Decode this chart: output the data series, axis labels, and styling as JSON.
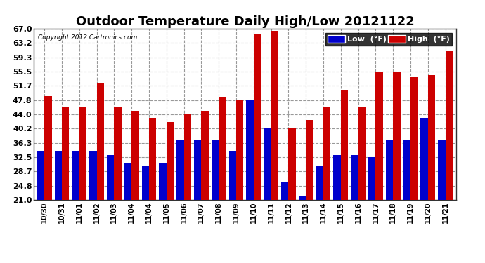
{
  "title": "Outdoor Temperature Daily High/Low 20121122",
  "copyright": "Copyright 2012 Cartronics.com",
  "legend_low": "Low  (°F)",
  "legend_high": "High  (°F)",
  "categories": [
    "10/30",
    "10/31",
    "11/01",
    "11/02",
    "11/03",
    "11/04",
    "11/04",
    "11/05",
    "11/06",
    "11/07",
    "11/08",
    "11/09",
    "11/10",
    "11/11",
    "11/12",
    "11/13",
    "11/14",
    "11/15",
    "11/16",
    "11/17",
    "11/18",
    "11/19",
    "11/20",
    "11/21"
  ],
  "low_values": [
    34.0,
    34.0,
    34.0,
    34.0,
    33.0,
    31.0,
    30.0,
    31.0,
    37.0,
    37.0,
    37.0,
    34.0,
    48.0,
    40.5,
    26.0,
    22.0,
    30.0,
    33.0,
    33.0,
    32.5,
    37.0,
    37.0,
    43.0,
    37.0
  ],
  "high_values": [
    49.0,
    46.0,
    46.0,
    52.5,
    46.0,
    45.0,
    43.0,
    42.0,
    44.0,
    45.0,
    48.5,
    48.0,
    65.5,
    66.5,
    40.5,
    42.5,
    46.0,
    50.5,
    46.0,
    55.5,
    55.5,
    54.0,
    54.5,
    61.0
  ],
  "ylim": [
    21.0,
    67.0
  ],
  "yticks": [
    21.0,
    24.8,
    28.7,
    32.5,
    36.3,
    40.2,
    44.0,
    47.8,
    51.7,
    55.5,
    59.3,
    63.2,
    67.0
  ],
  "low_color": "#0000cc",
  "high_color": "#cc0000",
  "bg_color": "#ffffff",
  "grid_color": "#999999",
  "title_fontsize": 13,
  "bar_width": 0.42
}
